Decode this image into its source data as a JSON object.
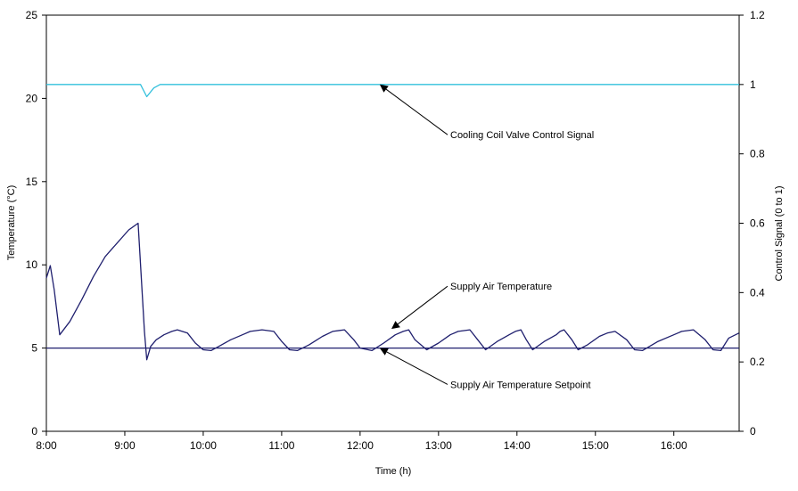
{
  "chart_data": {
    "type": "line",
    "xlabel": "Time (h)",
    "ylabel": "Temperature (°C)",
    "y2label": "Control Signal (0 to 1)",
    "xlim": [
      8,
      16.833
    ],
    "ylim": [
      0,
      25
    ],
    "y2lim": [
      0,
      1.2
    ],
    "x_ticks": [
      8,
      9,
      10,
      11,
      12,
      13,
      14,
      15,
      16
    ],
    "x_tick_labels": [
      "8:00",
      "9:00",
      "10:00",
      "11:00",
      "12:00",
      "13:00",
      "14:00",
      "15:00",
      "16:00"
    ],
    "y_ticks": [
      0,
      5,
      10,
      15,
      20,
      25
    ],
    "y_tick_labels": [
      "0",
      "5",
      "10",
      "15",
      "20",
      "25"
    ],
    "y2_ticks": [
      0,
      0.2,
      0.4,
      0.6,
      0.8,
      1,
      1.2
    ],
    "y2_tick_labels": [
      "0",
      "0.2",
      "0.4",
      "0.6",
      "0.8",
      "1",
      "1.2"
    ],
    "grid": false,
    "legend": "none",
    "series": [
      {
        "name": "Supply Air Temperature",
        "axis": "left",
        "color": "#1f1f6e",
        "x": [
          8.0,
          8.05,
          8.1,
          8.17,
          8.3,
          8.45,
          8.6,
          8.75,
          8.9,
          9.05,
          9.17,
          9.25,
          9.28,
          9.33,
          9.4,
          9.5,
          9.6,
          9.67,
          9.8,
          9.9,
          10.0,
          10.1,
          10.2,
          10.35,
          10.5,
          10.6,
          10.75,
          10.9,
          11.0,
          11.1,
          11.2,
          11.35,
          11.52,
          11.65,
          11.8,
          11.92,
          12.0,
          12.15,
          12.3,
          12.45,
          12.55,
          12.62,
          12.7,
          12.85,
          13.0,
          13.15,
          13.25,
          13.4,
          13.5,
          13.6,
          13.75,
          13.9,
          13.98,
          14.05,
          14.12,
          14.2,
          14.35,
          14.5,
          14.55,
          14.6,
          14.7,
          14.78,
          14.9,
          15.05,
          15.15,
          15.25,
          15.4,
          15.5,
          15.6,
          15.8,
          16.0,
          16.1,
          16.25,
          16.4,
          16.5,
          16.6,
          16.7,
          16.83
        ],
        "values": [
          9.2,
          9.95,
          8.5,
          5.8,
          6.6,
          7.9,
          9.3,
          10.5,
          11.3,
          12.1,
          12.5,
          6.0,
          4.3,
          5.1,
          5.5,
          5.8,
          6.0,
          6.1,
          5.9,
          5.3,
          4.9,
          4.85,
          5.1,
          5.5,
          5.8,
          6.0,
          6.1,
          6.0,
          5.4,
          4.9,
          4.85,
          5.2,
          5.7,
          6.0,
          6.1,
          5.5,
          5.0,
          4.85,
          5.3,
          5.8,
          6.0,
          6.1,
          5.5,
          4.9,
          5.3,
          5.8,
          6.0,
          6.1,
          5.5,
          4.9,
          5.4,
          5.8,
          6.0,
          6.1,
          5.5,
          4.9,
          5.4,
          5.8,
          6.0,
          6.1,
          5.5,
          4.9,
          5.2,
          5.7,
          5.9,
          6.0,
          5.5,
          4.9,
          4.85,
          5.4,
          5.8,
          6.0,
          6.1,
          5.5,
          4.9,
          4.85,
          5.6,
          5.9
        ]
      },
      {
        "name": "Supply Air Temperature Setpoint",
        "axis": "left",
        "color": "#1f1f6e",
        "x": [
          8.0,
          16.833
        ],
        "values": [
          5.0,
          5.0
        ]
      },
      {
        "name": "Cooling Coil Valve Control Signal",
        "axis": "right",
        "color": "#33c0dc",
        "x": [
          8.0,
          9.2,
          9.28,
          9.37,
          9.45,
          16.833
        ],
        "values": [
          1.0,
          1.0,
          0.965,
          0.99,
          1.0,
          1.0
        ]
      }
    ],
    "annotations": [
      {
        "text": "Cooling Coil Valve Control Signal",
        "target_series": "Cooling Coil Valve Control Signal",
        "point": {
          "x": 12.25,
          "y": 1.0,
          "axis": "right"
        },
        "text_anchor": {
          "x": 13.15,
          "y": 17.6,
          "axis": "left"
        }
      },
      {
        "text": "Supply Air Temperature",
        "target_series": "Supply Air Temperature",
        "point": {
          "x": 12.4,
          "y": 6.15,
          "axis": "left"
        },
        "text_anchor": {
          "x": 13.15,
          "y": 8.5,
          "axis": "left"
        }
      },
      {
        "text": "Supply Air Temperature Setpoint",
        "target_series": "Supply Air Temperature Setpoint",
        "point": {
          "x": 12.25,
          "y": 5.0,
          "axis": "left"
        },
        "text_anchor": {
          "x": 13.15,
          "y": 2.6,
          "axis": "left"
        }
      }
    ]
  }
}
